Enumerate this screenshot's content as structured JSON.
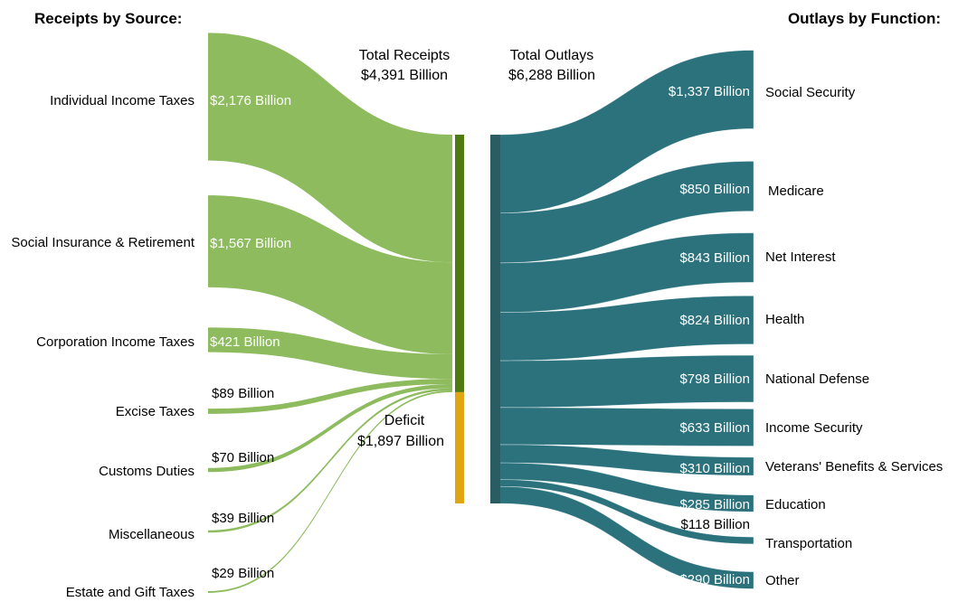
{
  "headers": {
    "receipts_title": "Receipts by Source:",
    "outlays_title": "Outlays by Function:",
    "total_receipts_label": "Total Receipts",
    "total_receipts_value": "$4,391 Billion",
    "total_outlays_label": "Total Outlays",
    "total_outlays_value": "$6,288 Billion",
    "deficit_label": "Deficit",
    "deficit_value": "$1,897 Billion"
  },
  "colors": {
    "receipt_flow": "#8dbb5e",
    "receipt_bar": "#4e7a0f",
    "deficit_bar": "#dfa612",
    "outlay_flow": "#2b727d",
    "outlay_bar": "#2a5c63",
    "text": "#000000",
    "flow_label_text": "#ffffff"
  },
  "receipts": [
    {
      "name": "Individual Income Taxes",
      "amount": "$2,176 Billion",
      "value": 2176
    },
    {
      "name": "Social Insurance & Retirement",
      "amount": "$1,567 Billion",
      "value": 1567
    },
    {
      "name": "Corporation Income Taxes",
      "amount": "$421 Billion",
      "value": 421
    },
    {
      "name": "Excise Taxes",
      "amount": "$89 Billion",
      "value": 89
    },
    {
      "name": "Customs Duties",
      "amount": "$70 Billion",
      "value": 70
    },
    {
      "name": "Miscellaneous",
      "amount": "$39 Billion",
      "value": 39
    },
    {
      "name": "Estate and Gift Taxes",
      "amount": "$29 Billion",
      "value": 29
    }
  ],
  "outlays": [
    {
      "name": "Social Security",
      "amount": "$1,337 Billion",
      "value": 1337
    },
    {
      "name": "Medicare",
      "amount": "$850 Billion",
      "value": 850
    },
    {
      "name": "Net Interest",
      "amount": "$843 Billion",
      "value": 843
    },
    {
      "name": "Health",
      "amount": "$824 Billion",
      "value": 824
    },
    {
      "name": "National Defense",
      "amount": "$798 Billion",
      "value": 798
    },
    {
      "name": "Income Security",
      "amount": "$633 Billion",
      "value": 633
    },
    {
      "name": "Veterans' Benefits & Services",
      "amount": "$310 Billion",
      "value": 310
    },
    {
      "name": "Education",
      "amount": "$285 Billion",
      "value": 285
    },
    {
      "name": "Transportation",
      "amount": "$118 Billion",
      "value": 118
    },
    {
      "name": "Other",
      "amount": "$290 Billion",
      "value": 290
    }
  ]
}
